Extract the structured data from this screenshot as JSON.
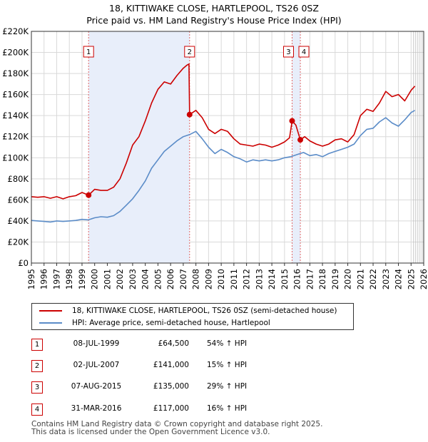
{
  "chart_data": {
    "type": "line",
    "title": "18, KITTIWAKE CLOSE, HARTLEPOOL, TS26 0SZ",
    "subtitle": "Price paid vs. HM Land Registry's House Price Index (HPI)",
    "xlim": [
      1995,
      2026
    ],
    "ylim": [
      0,
      220000
    ],
    "yticks": [
      0,
      20000,
      40000,
      60000,
      80000,
      100000,
      120000,
      140000,
      160000,
      180000,
      200000,
      220000
    ],
    "ytick_labels": [
      "£0",
      "£20K",
      "£40K",
      "£60K",
      "£80K",
      "£100K",
      "£120K",
      "£140K",
      "£160K",
      "£180K",
      "£200K",
      "£220K"
    ],
    "xticks": [
      1995,
      1996,
      1997,
      1998,
      1999,
      2000,
      2001,
      2002,
      2003,
      2004,
      2005,
      2006,
      2007,
      2008,
      2009,
      2010,
      2011,
      2012,
      2013,
      2014,
      2015,
      2016,
      2017,
      2018,
      2019,
      2020,
      2021,
      2022,
      2023,
      2024,
      2025,
      2026
    ],
    "shaded_regions": [
      [
        1999.52,
        2007.5
      ],
      [
        2015.6,
        2016.25
      ]
    ],
    "forecast_start": 2025.2,
    "series": [
      {
        "name": "18, KITTIWAKE CLOSE, HARTLEPOOL, TS26 0SZ (semi-detached house)",
        "color": "#cc0000",
        "x": [
          1995.0,
          1995.5,
          1996.0,
          1996.5,
          1997.0,
          1997.5,
          1998.0,
          1998.5,
          1999.0,
          1999.52,
          2000.0,
          2000.5,
          2001.0,
          2001.5,
          2002.0,
          2002.5,
          2003.0,
          2003.5,
          2004.0,
          2004.5,
          2005.0,
          2005.5,
          2006.0,
          2006.5,
          2007.0,
          2007.3,
          2007.45,
          2007.5,
          2008.0,
          2008.5,
          2009.0,
          2009.5,
          2010.0,
          2010.5,
          2011.0,
          2011.5,
          2012.0,
          2012.5,
          2013.0,
          2013.5,
          2014.0,
          2014.5,
          2015.0,
          2015.4,
          2015.6,
          2015.9,
          2016.25,
          2016.6,
          2017.0,
          2017.5,
          2018.0,
          2018.5,
          2019.0,
          2019.5,
          2020.0,
          2020.5,
          2021.0,
          2021.5,
          2022.0,
          2022.5,
          2023.0,
          2023.5,
          2024.0,
          2024.5,
          2025.0,
          2025.3
        ],
        "values": [
          63000,
          62500,
          63000,
          61500,
          63000,
          61000,
          63000,
          64000,
          67000,
          64500,
          70000,
          69000,
          69000,
          72000,
          80000,
          95000,
          112000,
          120000,
          135000,
          152000,
          165000,
          172000,
          170000,
          178000,
          185000,
          188000,
          189000,
          141000,
          145000,
          138000,
          127000,
          123000,
          127000,
          125000,
          118000,
          113000,
          112000,
          111000,
          113000,
          112000,
          110000,
          112000,
          115000,
          119000,
          135000,
          131000,
          117000,
          120000,
          116000,
          113000,
          111000,
          113000,
          117000,
          118000,
          115000,
          122000,
          140000,
          146000,
          144000,
          152000,
          163000,
          158000,
          160000,
          154000,
          164000,
          168000
        ]
      },
      {
        "name": "HPI: Average price, semi-detached house, Hartlepool",
        "color": "#5b8cc8",
        "x": [
          1995.0,
          1995.5,
          1996.0,
          1996.5,
          1997.0,
          1997.5,
          1998.0,
          1998.5,
          1999.0,
          1999.5,
          2000.0,
          2000.5,
          2001.0,
          2001.5,
          2002.0,
          2002.5,
          2003.0,
          2003.5,
          2004.0,
          2004.5,
          2005.0,
          2005.5,
          2006.0,
          2006.5,
          2007.0,
          2007.5,
          2008.0,
          2008.5,
          2009.0,
          2009.5,
          2010.0,
          2010.5,
          2011.0,
          2011.5,
          2012.0,
          2012.5,
          2013.0,
          2013.5,
          2014.0,
          2014.5,
          2015.0,
          2015.5,
          2016.0,
          2016.5,
          2017.0,
          2017.5,
          2018.0,
          2018.5,
          2019.0,
          2019.5,
          2020.0,
          2020.5,
          2021.0,
          2021.5,
          2022.0,
          2022.5,
          2023.0,
          2023.5,
          2024.0,
          2024.5,
          2025.0,
          2025.3
        ],
        "values": [
          40500,
          40000,
          39500,
          39000,
          40000,
          39500,
          40000,
          40500,
          41500,
          41000,
          43000,
          44000,
          43500,
          45000,
          49000,
          55000,
          61000,
          69000,
          78000,
          90000,
          98000,
          106000,
          111000,
          116000,
          120000,
          122000,
          125000,
          118000,
          110000,
          104000,
          108000,
          105000,
          101000,
          99000,
          96000,
          98000,
          97000,
          98000,
          97000,
          98000,
          100000,
          101000,
          103000,
          105000,
          102000,
          103000,
          101000,
          104000,
          106000,
          108000,
          110000,
          113000,
          121000,
          127000,
          128000,
          134000,
          138000,
          133000,
          130000,
          136000,
          143000,
          145000
        ]
      }
    ],
    "sale_markers": [
      {
        "label": "1",
        "x": 1999.52,
        "y": 64500
      },
      {
        "label": "2",
        "x": 2007.5,
        "y": 141000
      },
      {
        "label": "3",
        "x": 2015.6,
        "y": 135000
      },
      {
        "label": "4",
        "x": 2016.25,
        "y": 117000
      }
    ]
  },
  "legend": {
    "property_label": "18, KITTIWAKE CLOSE, HARTLEPOOL, TS26 0SZ (semi-detached house)",
    "hpi_label": "HPI: Average price, semi-detached house, Hartlepool",
    "property_color": "#cc0000",
    "hpi_color": "#5b8cc8"
  },
  "sales": [
    {
      "num": "1",
      "date": "08-JUL-1999",
      "price": "£64,500",
      "hpi": "54% ↑ HPI"
    },
    {
      "num": "2",
      "date": "02-JUL-2007",
      "price": "£141,000",
      "hpi": "15% ↑ HPI"
    },
    {
      "num": "3",
      "date": "07-AUG-2015",
      "price": "£135,000",
      "hpi": "29% ↑ HPI"
    },
    {
      "num": "4",
      "date": "31-MAR-2016",
      "price": "£117,000",
      "hpi": "16% ↑ HPI"
    }
  ],
  "footer": {
    "line1": "Contains HM Land Registry data © Crown copyright and database right 2025.",
    "line2": "This data is licensed under the Open Government Licence v3.0."
  }
}
